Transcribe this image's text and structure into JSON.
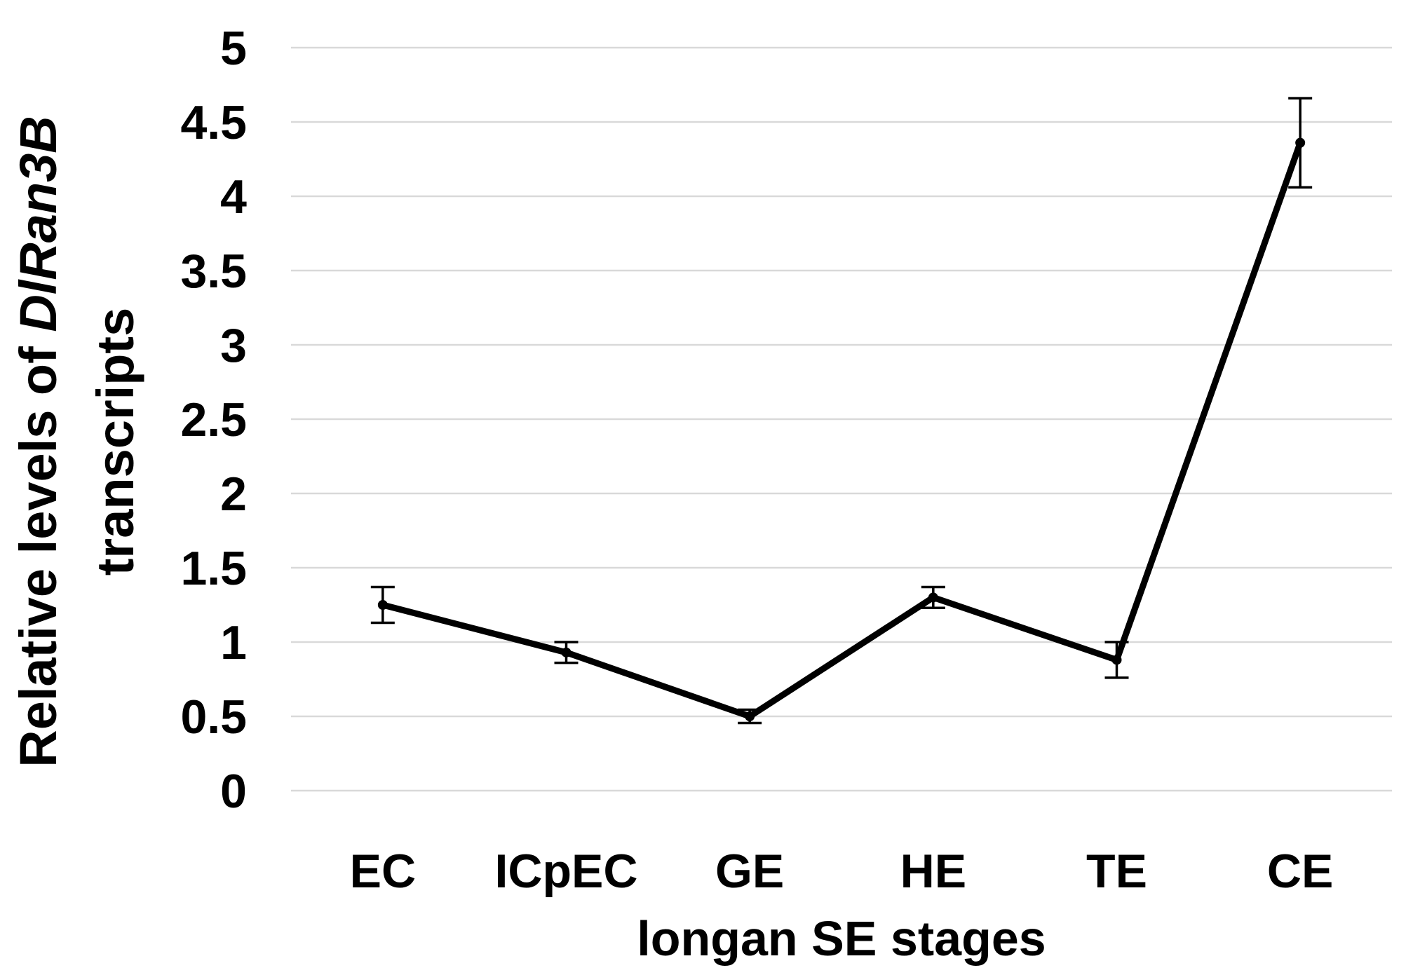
{
  "figure": {
    "background": "#ffffff"
  },
  "chart_data": {
    "type": "line",
    "title": "",
    "categories": [
      "EC",
      "ICpEC",
      "GE",
      "HE",
      "TE",
      "CE"
    ],
    "series": [
      {
        "name": "DlRan3B transcripts",
        "values": [
          1.25,
          0.93,
          0.5,
          1.3,
          0.88,
          4.36
        ],
        "errors": [
          0.12,
          0.07,
          0.045,
          0.07,
          0.12,
          0.3
        ]
      }
    ],
    "xlabel": "longan SE stages",
    "ylabel": {
      "line1_prefix": "Relative levels of ",
      "line1_italic": "DlRan3B",
      "line2": "transcripts"
    },
    "ylim": [
      0,
      5
    ],
    "ytick_step": 0.5,
    "yticks": [
      "0",
      "0.5",
      "1",
      "1.5",
      "2",
      "2.5",
      "3",
      "3.5",
      "4",
      "4.5",
      "5"
    ],
    "grid": true,
    "legend_position": "none",
    "line_color": "#000000",
    "error_bar_color": "#000000",
    "grid_color": "#d9d9d9",
    "text_color": "#000000"
  }
}
